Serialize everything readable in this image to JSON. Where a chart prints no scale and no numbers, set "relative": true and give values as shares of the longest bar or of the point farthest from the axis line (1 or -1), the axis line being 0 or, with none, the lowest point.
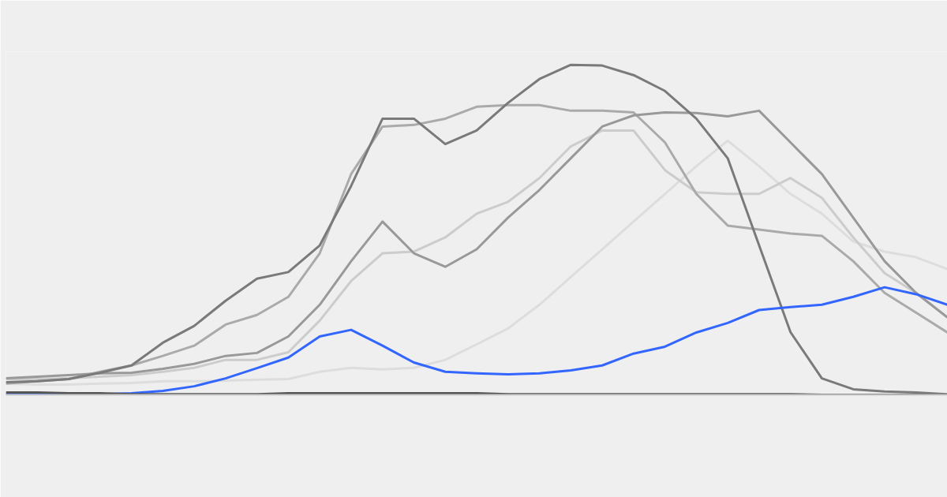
{
  "chart_data": {
    "type": "line",
    "relative": true,
    "marker": "none",
    "line_style": "solid",
    "categories": [
      null,
      null,
      null,
      null,
      null,
      null,
      null,
      null,
      null,
      null,
      null,
      null,
      null,
      null,
      null,
      null,
      null,
      null,
      null,
      null,
      null,
      null,
      null,
      null,
      null,
      null,
      null,
      null,
      null,
      null,
      null
    ],
    "series": [
      {
        "color": "#dddddd",
        "values": [
          0.034,
          0.031,
          0.031,
          0.034,
          0.036,
          0.041,
          0.041,
          0.043,
          0.046,
          0.048,
          0.07,
          0.082,
          0.077,
          0.082,
          0.106,
          0.153,
          0.201,
          0.273,
          0.357,
          0.441,
          0.525,
          0.609,
          0.693,
          0.77,
          0.693,
          0.609,
          0.549,
          0.465,
          0.434,
          0.417,
          0.381
        ]
      },
      {
        "color": "#cccccc",
        "values": [
          0.048,
          0.048,
          0.05,
          0.055,
          0.06,
          0.07,
          0.082,
          0.106,
          0.106,
          0.129,
          0.225,
          0.345,
          0.429,
          0.434,
          0.477,
          0.549,
          0.585,
          0.657,
          0.753,
          0.801,
          0.801,
          0.681,
          0.614,
          0.609,
          0.609,
          0.657,
          0.597,
          0.477,
          0.369,
          0.309,
          0.235
        ]
      },
      {
        "color": "#aaaaaa",
        "values": [
          0.034,
          0.041,
          0.048,
          0.07,
          0.089,
          0.118,
          0.149,
          0.213,
          0.242,
          0.297,
          0.429,
          0.669,
          0.813,
          0.818,
          0.837,
          0.873,
          0.878,
          0.878,
          0.861,
          0.861,
          0.856,
          0.765,
          0.609,
          0.513,
          0.501,
          0.489,
          0.482,
          0.405,
          0.309,
          0.249,
          0.189
        ]
      },
      {
        "color": "#999999",
        "values": [
          0.05,
          0.055,
          0.06,
          0.065,
          0.067,
          0.079,
          0.094,
          0.118,
          0.127,
          0.177,
          0.273,
          0.405,
          0.525,
          0.429,
          0.388,
          0.441,
          0.537,
          0.621,
          0.717,
          0.813,
          0.847,
          0.856,
          0.854,
          0.844,
          0.861,
          0.765,
          0.669,
          0.537,
          0.405,
          0.309,
          0.235
        ]
      },
      {
        "color": "#7a7a7a",
        "values": [
          0.038,
          0.041,
          0.048,
          0.067,
          0.089,
          0.158,
          0.209,
          0.285,
          0.352,
          0.372,
          0.453,
          0.633,
          0.837,
          0.837,
          0.76,
          0.801,
          0.885,
          0.957,
          1.0,
          0.998,
          0.969,
          0.921,
          0.837,
          0.717,
          0.453,
          0.19,
          0.05,
          0.017,
          0.01,
          0.007,
          0.002
        ]
      },
      {
        "color": "#3366ff",
        "values": [
          0.002,
          0.002,
          0.002,
          0.002,
          0.005,
          0.012,
          0.026,
          0.05,
          0.081,
          0.113,
          0.177,
          0.197,
          0.149,
          0.098,
          0.07,
          0.065,
          0.062,
          0.065,
          0.074,
          0.089,
          0.125,
          0.146,
          0.189,
          0.218,
          0.257,
          0.266,
          0.273,
          0.297,
          0.326,
          0.305,
          0.273
        ]
      },
      {
        "color": "#555555",
        "values": [
          0.007,
          0.007,
          0.005,
          0.005,
          0.002,
          0.002,
          0.002,
          0.002,
          0.002,
          0.005,
          0.005,
          0.005,
          0.005,
          0.005,
          0.005,
          0.005,
          0.002,
          0.002,
          0.002,
          0.002,
          0.002,
          0.002,
          0.002,
          0.002,
          0.002,
          0.002,
          0,
          0,
          0,
          0,
          0
        ]
      }
    ]
  }
}
